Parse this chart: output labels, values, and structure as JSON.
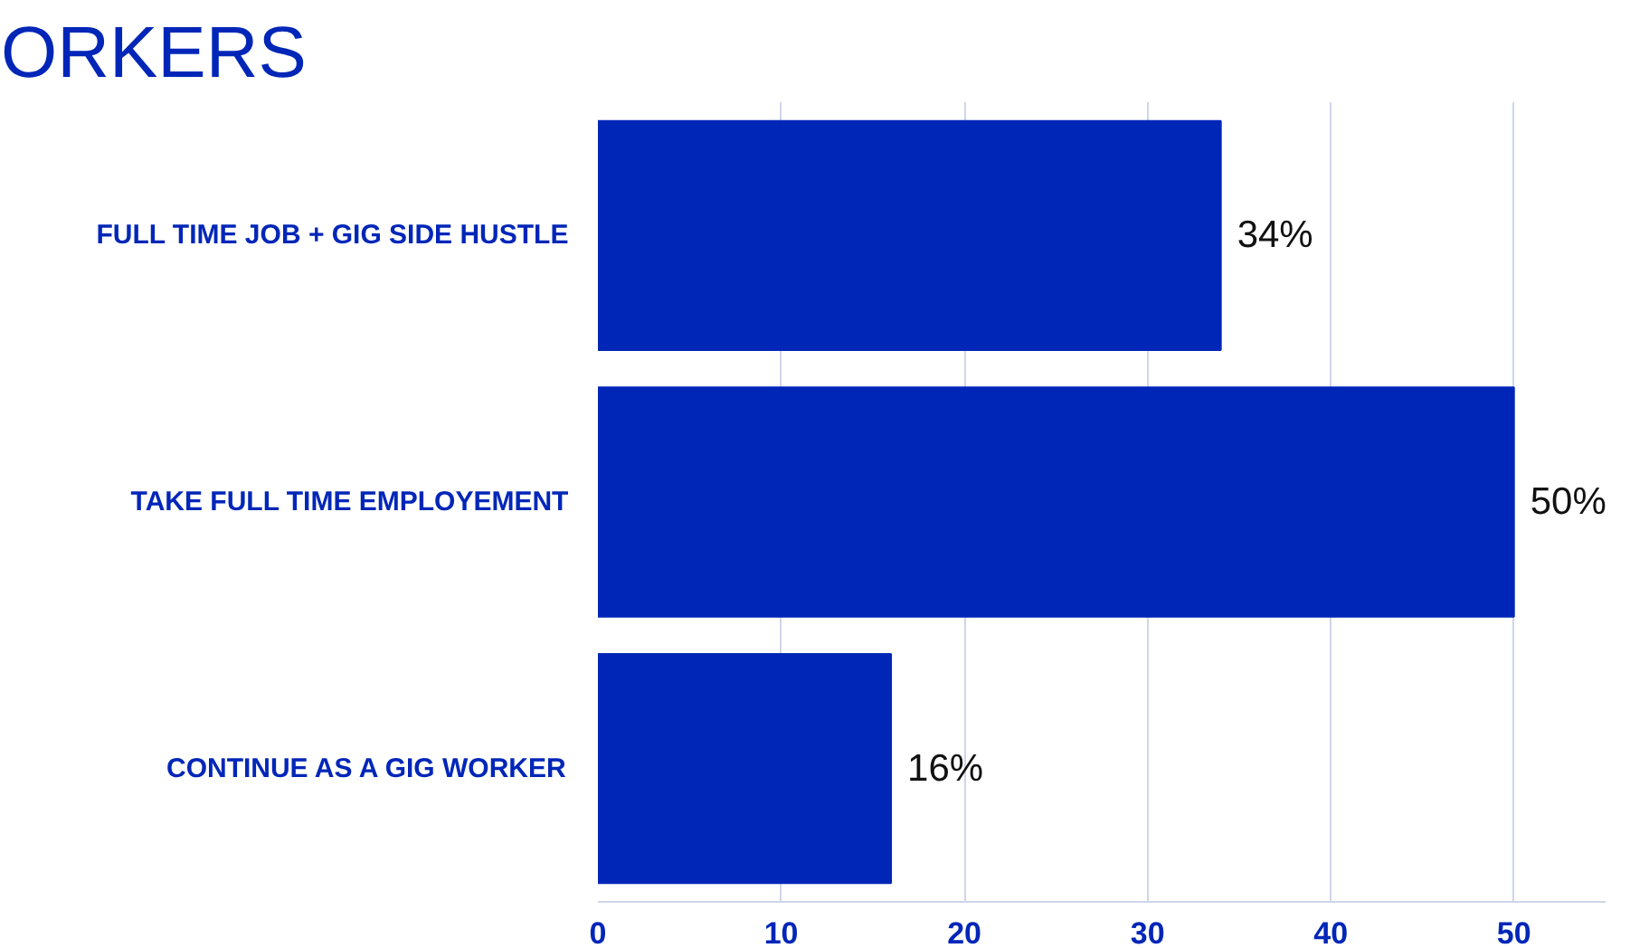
{
  "chart_data": {
    "type": "bar",
    "orientation": "horizontal",
    "title": "ORKERS",
    "categories": [
      "FULL TIME JOB + GIG SIDE HUSTLE",
      "TAKE FULL TIME EMPLOYEMENT",
      "CONTINUE AS A GIG WORKER"
    ],
    "values": [
      34,
      50,
      16
    ],
    "color": "#0026b8",
    "value_labels": [
      "34%",
      "50%",
      "16%"
    ],
    "xlim": [
      0,
      55
    ],
    "xticks": [
      0,
      10,
      20,
      30,
      40,
      50
    ],
    "grid": "x"
  }
}
